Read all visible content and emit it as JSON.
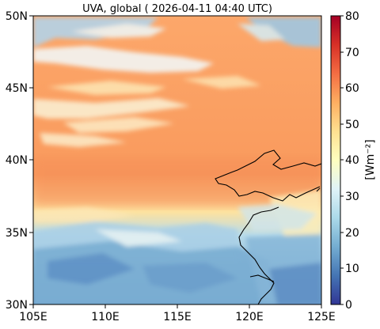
{
  "title": "UVA, global ( 2026-04-11 04:40 UTC)",
  "map": {
    "x_ticks": [
      "105E",
      "110E",
      "115E",
      "120E",
      "125E"
    ],
    "y_ticks": [
      "50N",
      "45N",
      "40N",
      "35N",
      "30N"
    ],
    "lon_range": [
      105,
      125
    ],
    "lat_range": [
      30,
      50
    ],
    "coastline_color": "#000000"
  },
  "colorbar": {
    "label": "[Wm⁻²]",
    "ticks": [
      "80",
      "70",
      "60",
      "50",
      "40",
      "30",
      "20",
      "10",
      "0"
    ],
    "range": [
      0,
      80
    ],
    "colormap": "RdYlBu_r",
    "stops": [
      "#a50026",
      "#d73027",
      "#f46d43",
      "#fdae61",
      "#fee090",
      "#ffffbf",
      "#e0f3f8",
      "#abd9e9",
      "#74add1",
      "#4575b4",
      "#313695"
    ]
  }
}
